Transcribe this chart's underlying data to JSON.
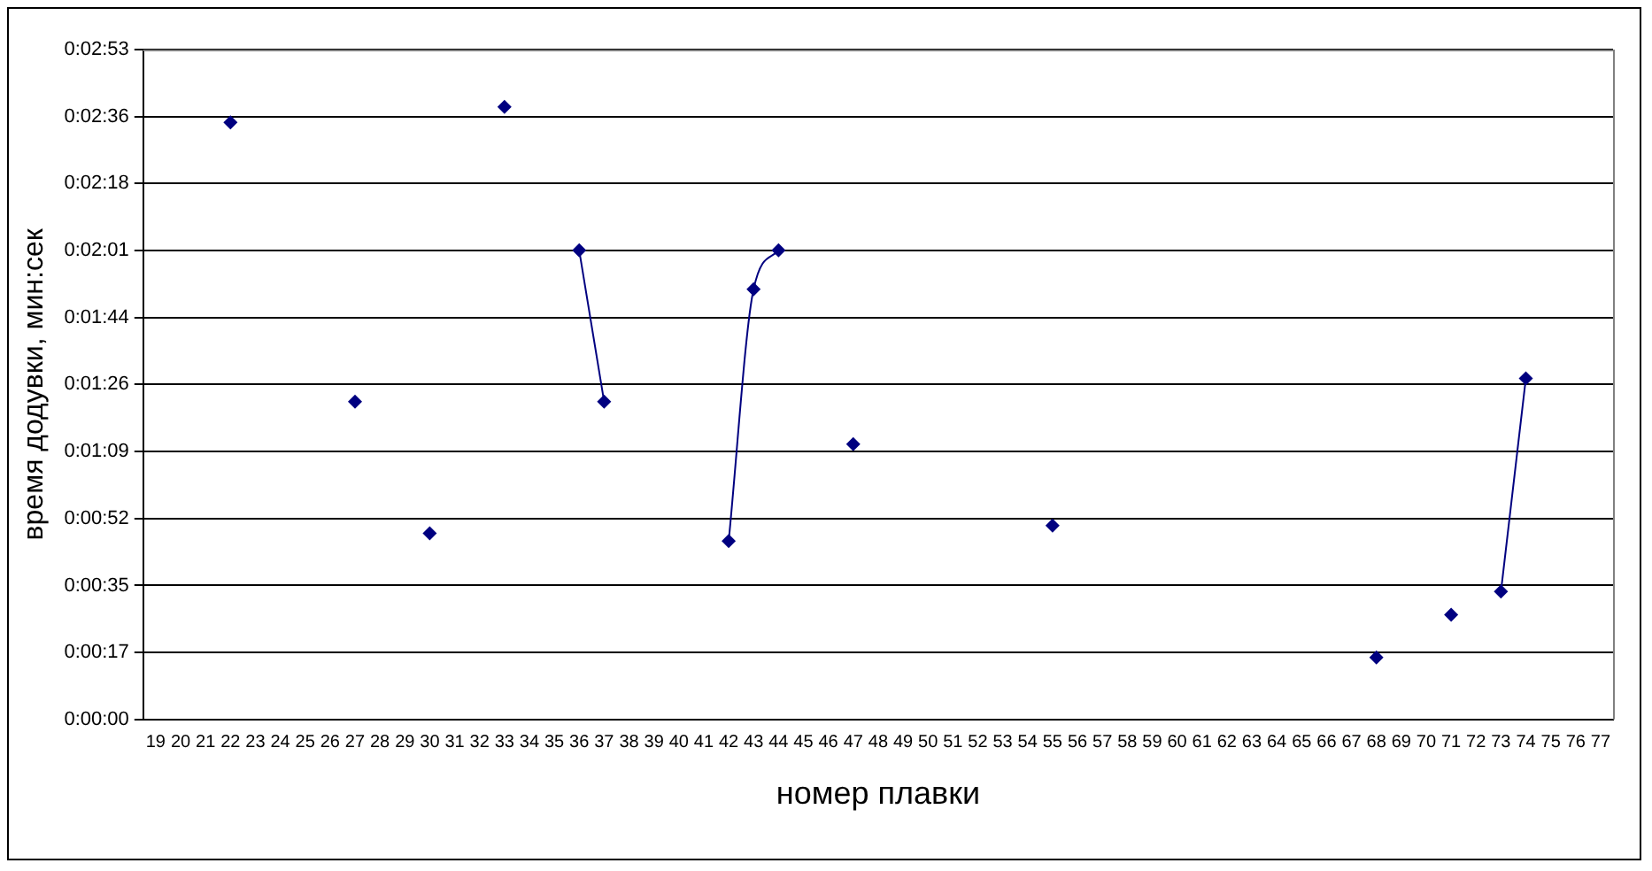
{
  "chart_data": {
    "type": "line",
    "xlabel": "номер плавки",
    "ylabel": "время додувки, мин:сек",
    "categories": [
      "19",
      "20",
      "21",
      "22",
      "23",
      "24",
      "25",
      "26",
      "27",
      "28",
      "29",
      "30",
      "31",
      "32",
      "33",
      "34",
      "35",
      "36",
      "37",
      "38",
      "39",
      "40",
      "41",
      "42",
      "43",
      "44",
      "45",
      "46",
      "47",
      "48",
      "49",
      "50",
      "51",
      "52",
      "53",
      "54",
      "55",
      "56",
      "57",
      "58",
      "59",
      "60",
      "61",
      "62",
      "63",
      "64",
      "65",
      "66",
      "67",
      "68",
      "69",
      "70",
      "71",
      "72",
      "73",
      "74",
      "75",
      "76",
      "77"
    ],
    "series": [
      {
        "color": "#000080",
        "values": [
          null,
          null,
          null,
          154,
          null,
          null,
          null,
          null,
          82,
          null,
          null,
          48,
          null,
          null,
          158,
          null,
          null,
          121,
          82,
          null,
          null,
          null,
          null,
          46,
          111,
          121,
          null,
          null,
          71,
          null,
          null,
          null,
          null,
          null,
          null,
          null,
          50,
          null,
          null,
          null,
          null,
          null,
          null,
          null,
          null,
          null,
          null,
          null,
          null,
          16,
          null,
          null,
          27,
          null,
          33,
          88,
          null,
          null,
          null
        ]
      }
    ],
    "ylim": [
      0,
      172.8
    ],
    "yticks": [
      {
        "value": 0,
        "label": "0:00:00"
      },
      {
        "value": 17.28,
        "label": "0:00:17"
      },
      {
        "value": 34.56,
        "label": "0:00:35"
      },
      {
        "value": 51.84,
        "label": "0:00:52"
      },
      {
        "value": 69.12,
        "label": "0:01:09"
      },
      {
        "value": 86.4,
        "label": "0:01:26"
      },
      {
        "value": 103.68,
        "label": "0:01:44"
      },
      {
        "value": 120.96,
        "label": "0:02:01"
      },
      {
        "value": 138.24,
        "label": "0:02:18"
      },
      {
        "value": 155.52,
        "label": "0:02:36"
      },
      {
        "value": 172.8,
        "label": "0:02:53"
      }
    ],
    "grid": "y",
    "legend": false,
    "marker": "diamond",
    "line_style": "solid"
  }
}
